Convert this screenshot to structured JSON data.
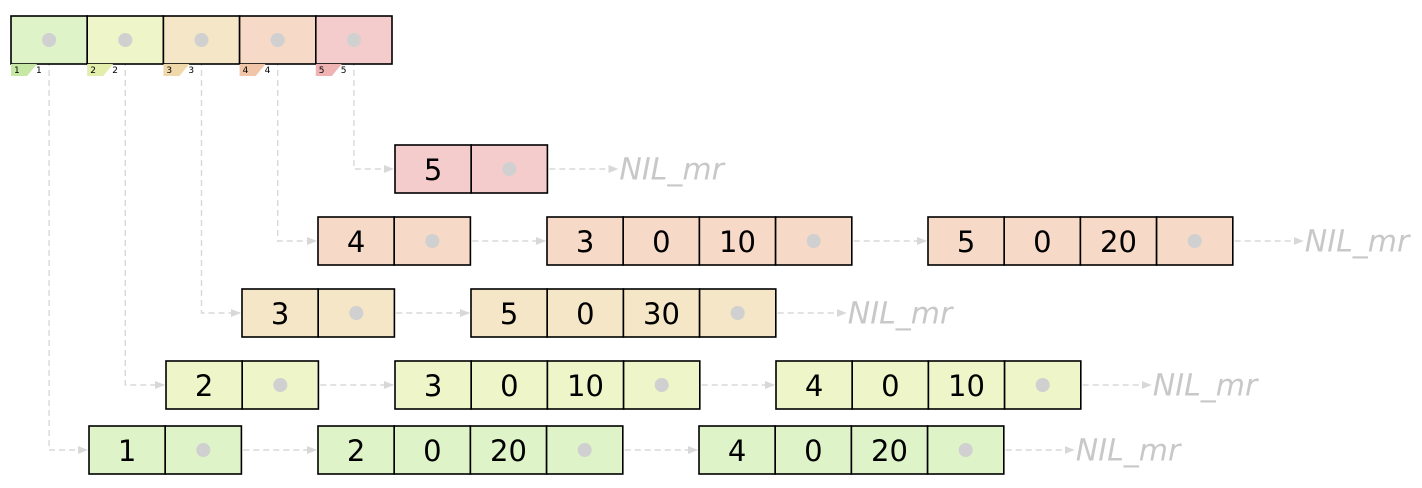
{
  "colors": {
    "row1": "#dff3c8",
    "row2": "#eef5c8",
    "row3": "#f4e6c6",
    "row4": "#f6d9c6",
    "row5": "#f4cccc",
    "link": "#d8d8d8",
    "dot": "#d0d0d0",
    "nil_text": "#c8c8c8"
  },
  "header": {
    "cells": [
      {
        "index": "1",
        "label": "1",
        "color": "#dff3c8",
        "tab_color": "#c6e8a4"
      },
      {
        "index": "2",
        "label": "2",
        "color": "#eef5c8",
        "tab_color": "#e3eeac"
      },
      {
        "index": "3",
        "label": "3",
        "color": "#f4e6c6",
        "tab_color": "#efd9aa"
      },
      {
        "index": "4",
        "label": "4",
        "color": "#f6d9c6",
        "tab_color": "#f1c6a8"
      },
      {
        "index": "5",
        "label": "5",
        "color": "#f4cccc",
        "tab_color": "#efb3b3"
      }
    ]
  },
  "nil_label": "NIL_mr",
  "rows": [
    {
      "name": "row-5",
      "color": "#f4cccc",
      "head": "5",
      "nodes": []
    },
    {
      "name": "row-4",
      "color": "#f6d9c6",
      "head": "4",
      "nodes": [
        [
          "3",
          "0",
          "10"
        ],
        [
          "5",
          "0",
          "20"
        ]
      ]
    },
    {
      "name": "row-3",
      "color": "#f4e6c6",
      "head": "3",
      "nodes": [
        [
          "5",
          "0",
          "30"
        ]
      ]
    },
    {
      "name": "row-2",
      "color": "#eef5c8",
      "head": "2",
      "nodes": [
        [
          "3",
          "0",
          "10"
        ],
        [
          "4",
          "0",
          "10"
        ]
      ]
    },
    {
      "name": "row-1",
      "color": "#dff3c8",
      "head": "1",
      "nodes": [
        [
          "2",
          "0",
          "20"
        ],
        [
          "4",
          "0",
          "20"
        ]
      ]
    }
  ]
}
